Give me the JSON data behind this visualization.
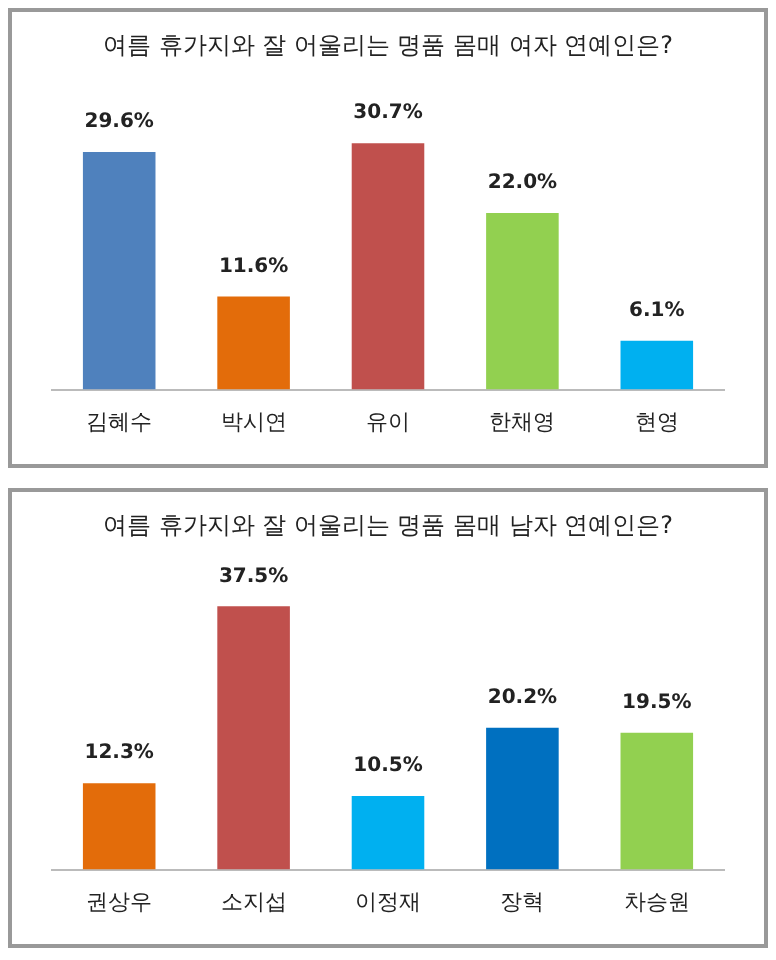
{
  "chart_data": [
    {
      "type": "bar",
      "title": "여름 휴가지와 잘 어울리는 명품 몸매 여자 연예인은?",
      "categories": [
        "김혜수",
        "박시연",
        "유이",
        "한채영",
        "현영"
      ],
      "values": [
        29.6,
        11.6,
        30.7,
        22.0,
        6.1
      ],
      "colors": [
        "#4f81bd",
        "#e36c0a",
        "#c0504d",
        "#92d050",
        "#00b0f0"
      ],
      "value_labels": [
        "29.6%",
        "11.6%",
        "30.7%",
        "22.0%",
        "6.1%"
      ],
      "grid": false,
      "legend": false,
      "tick_labels": "x"
    },
    {
      "type": "bar",
      "title": "여름 휴가지와 잘 어울리는 명품 몸매 남자 연예인은?",
      "categories": [
        "권상우",
        "소지섭",
        "이정재",
        "장혁",
        "차승원"
      ],
      "values": [
        12.3,
        37.5,
        10.5,
        20.2,
        19.5
      ],
      "colors": [
        "#e36c0a",
        "#c0504d",
        "#00b0f0",
        "#0070c0",
        "#92d050"
      ],
      "value_labels": [
        "12.3%",
        "37.5%",
        "10.5%",
        "20.2%",
        "19.5%"
      ],
      "grid": false,
      "legend": false,
      "tick_labels": "x"
    }
  ]
}
